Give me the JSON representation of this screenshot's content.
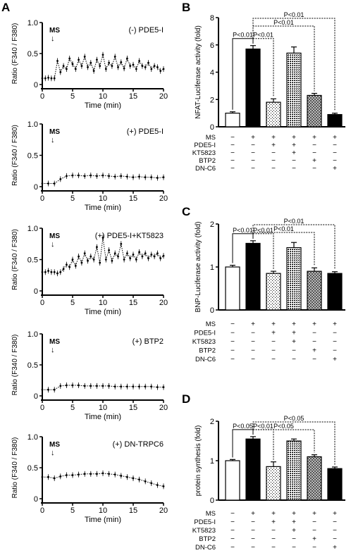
{
  "panel_letters": {
    "A": "A",
    "B": "B",
    "C": "C",
    "D": "D"
  },
  "chart_data": [
    {
      "id": "A1",
      "type": "line",
      "condition_label": "(-) PDE5-I",
      "stim_label": "MS",
      "stim_arrow": "↓",
      "xlabel": "Time (min)",
      "ylabel": "Ratio (F340 / F380)",
      "xlim": [
        0,
        20
      ],
      "ylim": [
        0,
        1.0
      ],
      "xticks": [
        0,
        5,
        10,
        15,
        20
      ],
      "yticks": [
        0,
        0.5,
        1.0
      ],
      "series": [
        {
          "x": [
            0,
            0.5,
            1,
            1.5,
            2,
            2.5,
            3,
            3.5,
            4,
            4.5,
            5,
            5.5,
            6,
            6.5,
            7,
            7.5,
            8,
            8.5,
            9,
            9.5,
            10,
            10.5,
            11,
            11.5,
            12,
            12.5,
            13,
            13.5,
            14,
            14.5,
            15,
            15.5,
            16,
            16.5,
            17,
            17.5,
            18,
            18.5,
            19,
            19.5,
            20
          ],
          "y": [
            0.1,
            0.1,
            0.11,
            0.1,
            0.1,
            0.38,
            0.2,
            0.3,
            0.25,
            0.42,
            0.33,
            0.25,
            0.4,
            0.3,
            0.45,
            0.28,
            0.35,
            0.22,
            0.4,
            0.3,
            0.48,
            0.25,
            0.35,
            0.3,
            0.45,
            0.28,
            0.36,
            0.26,
            0.42,
            0.3,
            0.32,
            0.25,
            0.38,
            0.3,
            0.28,
            0.35,
            0.25,
            0.3,
            0.28,
            0.22,
            0.25
          ]
        }
      ]
    },
    {
      "id": "A2",
      "type": "line",
      "condition_label": "(+) PDE5-I",
      "stim_label": "MS",
      "stim_arrow": "↓",
      "xlabel": "Time (min)",
      "ylabel": "Ratio (F340 / F380)",
      "xlim": [
        0,
        20
      ],
      "ylim": [
        0,
        1.0
      ],
      "xticks": [
        0,
        5,
        10,
        15,
        20
      ],
      "yticks": [
        0,
        0.5,
        1.0
      ],
      "series": [
        {
          "x": [
            0,
            1,
            2,
            3,
            4,
            5,
            6,
            7,
            8,
            9,
            10,
            11,
            12,
            13,
            14,
            15,
            16,
            17,
            18,
            19,
            20
          ],
          "y": [
            0.05,
            0.05,
            0.05,
            0.12,
            0.17,
            0.18,
            0.18,
            0.17,
            0.18,
            0.17,
            0.18,
            0.17,
            0.16,
            0.17,
            0.16,
            0.15,
            0.16,
            0.15,
            0.15,
            0.14,
            0.15
          ]
        }
      ]
    },
    {
      "id": "A3",
      "type": "line",
      "condition_label": "(+) PDE5-I+KT5823",
      "stim_label": "MS",
      "stim_arrow": "↓",
      "xlabel": "Time (min)",
      "ylabel": "Ratio (F340 / F380)",
      "xlim": [
        0,
        20
      ],
      "ylim": [
        0,
        1.0
      ],
      "xticks": [
        0,
        5,
        10,
        15,
        20
      ],
      "yticks": [
        0,
        0.5,
        1.0
      ],
      "series": [
        {
          "x": [
            0,
            0.5,
            1,
            1.5,
            2,
            2.5,
            3,
            3.5,
            4,
            4.5,
            5,
            5.5,
            6,
            6.5,
            7,
            7.5,
            8,
            8.5,
            9,
            9.5,
            10,
            10.5,
            11,
            11.5,
            12,
            12.5,
            13,
            13.5,
            14,
            14.5,
            15,
            15.5,
            16,
            16.5,
            17,
            17.5,
            18,
            18.5,
            19,
            19.5,
            20
          ],
          "y": [
            0.3,
            0.3,
            0.32,
            0.3,
            0.3,
            0.28,
            0.3,
            0.35,
            0.42,
            0.38,
            0.5,
            0.4,
            0.55,
            0.45,
            0.6,
            0.48,
            0.55,
            0.5,
            0.7,
            0.45,
            0.85,
            0.5,
            0.65,
            0.48,
            0.6,
            0.55,
            0.75,
            0.5,
            0.6,
            0.52,
            0.58,
            0.5,
            0.62,
            0.55,
            0.6,
            0.52,
            0.58,
            0.55,
            0.6,
            0.52,
            0.56
          ]
        }
      ]
    },
    {
      "id": "A4",
      "type": "line",
      "condition_label": "(+) BTP2",
      "stim_label": "MS",
      "stim_arrow": "↓",
      "xlabel": "Time (min)",
      "ylabel": "Ratio (F340 / F380)",
      "xlim": [
        0,
        20
      ],
      "ylim": [
        0,
        1.0
      ],
      "xticks": [
        0,
        5,
        10,
        15,
        20
      ],
      "yticks": [
        0,
        0.5,
        1.0
      ],
      "series": [
        {
          "x": [
            0,
            1,
            2,
            3,
            4,
            5,
            6,
            7,
            8,
            9,
            10,
            11,
            12,
            13,
            14,
            15,
            16,
            17,
            18,
            19,
            20
          ],
          "y": [
            0.1,
            0.1,
            0.1,
            0.16,
            0.17,
            0.17,
            0.17,
            0.16,
            0.16,
            0.16,
            0.16,
            0.16,
            0.15,
            0.15,
            0.15,
            0.15,
            0.15,
            0.15,
            0.15,
            0.14,
            0.14
          ]
        }
      ]
    },
    {
      "id": "A5",
      "type": "line",
      "condition_label": "(+) DN-TRPC6",
      "stim_label": "MS",
      "stim_arrow": "↓",
      "xlabel": "Time (min)",
      "ylabel": "Ratio (F340 / F380)",
      "xlim": [
        0,
        20
      ],
      "ylim": [
        0,
        1.0
      ],
      "xticks": [
        0,
        5,
        10,
        15,
        20
      ],
      "yticks": [
        0,
        0.5,
        1.0
      ],
      "series": [
        {
          "x": [
            0,
            1,
            2,
            3,
            4,
            5,
            6,
            7,
            8,
            9,
            10,
            11,
            12,
            13,
            14,
            15,
            16,
            17,
            18,
            19,
            20
          ],
          "y": [
            0.35,
            0.35,
            0.33,
            0.36,
            0.38,
            0.38,
            0.39,
            0.4,
            0.4,
            0.4,
            0.41,
            0.4,
            0.39,
            0.37,
            0.35,
            0.33,
            0.31,
            0.28,
            0.25,
            0.22,
            0.2
          ]
        }
      ]
    },
    {
      "id": "B",
      "type": "bar",
      "ylabel": "NFAT-Luciferase activity (fold)",
      "ylim": [
        0,
        8
      ],
      "yticks": [
        0,
        2,
        4,
        6,
        8
      ],
      "values": [
        1.0,
        5.7,
        1.8,
        5.4,
        2.3,
        0.9
      ],
      "errors": [
        0.1,
        0.25,
        0.25,
        0.45,
        0.15,
        0.1
      ],
      "bar_fills": [
        "white",
        "black",
        "sparse",
        "dense",
        "check",
        "black"
      ],
      "sig": [
        {
          "from": 0,
          "to": 1,
          "label": "P<0.01"
        },
        {
          "from": 1,
          "to": 2,
          "label": "P<0.01"
        },
        {
          "from": 1,
          "to": 4,
          "label": "P<0.01"
        },
        {
          "from": 1,
          "to": 5,
          "label": "P<0.01"
        }
      ],
      "table": [
        {
          "label": "MS",
          "signs": [
            "−",
            "+",
            "+",
            "+",
            "+",
            "+"
          ]
        },
        {
          "label": "PDE5-I",
          "signs": [
            "−",
            "−",
            "+",
            "+",
            "−",
            "−"
          ]
        },
        {
          "label": "KT5823",
          "signs": [
            "−",
            "−",
            "−",
            "+",
            "−",
            "−"
          ]
        },
        {
          "label": "BTP2",
          "signs": [
            "−",
            "−",
            "−",
            "−",
            "+",
            "−"
          ]
        },
        {
          "label": "DN-C6",
          "signs": [
            "−",
            "−",
            "−",
            "−",
            "−",
            "+"
          ]
        }
      ]
    },
    {
      "id": "C",
      "type": "bar",
      "ylabel": "BNP-Luciferase activity (fold)",
      "ylim": [
        0,
        2
      ],
      "yticks": [
        0,
        1,
        2
      ],
      "values": [
        1.0,
        1.55,
        0.85,
        1.45,
        0.9,
        0.85
      ],
      "errors": [
        0.04,
        0.06,
        0.05,
        0.12,
        0.08,
        0.04
      ],
      "bar_fills": [
        "white",
        "black",
        "sparse",
        "dense",
        "check",
        "black"
      ],
      "sig": [
        {
          "from": 0,
          "to": 1,
          "label": "P<0.01"
        },
        {
          "from": 1,
          "to": 2,
          "label": "P<0.01"
        },
        {
          "from": 1,
          "to": 4,
          "label": "P<0.01"
        },
        {
          "from": 1,
          "to": 5,
          "label": "P<0.01"
        }
      ],
      "table": [
        {
          "label": "MS",
          "signs": [
            "−",
            "+",
            "+",
            "+",
            "+",
            "+"
          ]
        },
        {
          "label": "PDE5-I",
          "signs": [
            "−",
            "−",
            "+",
            "+",
            "−",
            "−"
          ]
        },
        {
          "label": "KT5823",
          "signs": [
            "−",
            "−",
            "−",
            "+",
            "−",
            "−"
          ]
        },
        {
          "label": "BTP2",
          "signs": [
            "−",
            "−",
            "−",
            "−",
            "+",
            "−"
          ]
        },
        {
          "label": "DN-C6",
          "signs": [
            "−",
            "−",
            "−",
            "−",
            "−",
            "+"
          ]
        }
      ]
    },
    {
      "id": "D",
      "type": "bar",
      "ylabel": "protein synthesis (fold)",
      "ylim": [
        0,
        2
      ],
      "yticks": [
        0,
        1,
        2
      ],
      "values": [
        1.0,
        1.55,
        0.85,
        1.5,
        1.1,
        0.8
      ],
      "errors": [
        0.03,
        0.06,
        0.12,
        0.05,
        0.05,
        0.04
      ],
      "bar_fills": [
        "white",
        "black",
        "sparse",
        "dense",
        "check",
        "black"
      ],
      "sig": [
        {
          "from": 0,
          "to": 1,
          "label": "P<0.05"
        },
        {
          "from": 1,
          "to": 2,
          "label": "P<0.01"
        },
        {
          "from": 1,
          "to": 4,
          "label": "P<0.05"
        },
        {
          "from": 1,
          "to": 5,
          "label": "P<0.05"
        }
      ],
      "table": [
        {
          "label": "MS",
          "signs": [
            "−",
            "+",
            "+",
            "+",
            "+",
            "+"
          ]
        },
        {
          "label": "PDE5-I",
          "signs": [
            "−",
            "−",
            "+",
            "+",
            "−",
            "−"
          ]
        },
        {
          "label": "KT5823",
          "signs": [
            "−",
            "−",
            "−",
            "+",
            "−",
            "−"
          ]
        },
        {
          "label": "BTP2",
          "signs": [
            "−",
            "−",
            "−",
            "−",
            "+",
            "−"
          ]
        },
        {
          "label": "DN-C6",
          "signs": [
            "−",
            "−",
            "−",
            "−",
            "−",
            "+"
          ]
        }
      ]
    }
  ]
}
